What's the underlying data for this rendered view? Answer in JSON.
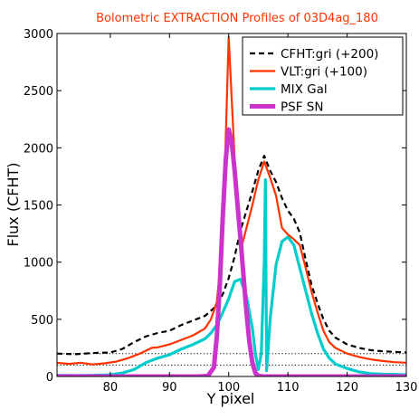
{
  "chart_data": {
    "type": "line",
    "title": "Bolometric EXTRACTION Profiles of 03D4ag_180",
    "title_color": "#ff3300",
    "xlabel": "Y pixel",
    "ylabel": "Flux (CFHT)",
    "xlim": [
      71,
      130
    ],
    "ylim": [
      0,
      3000
    ],
    "xticks": [
      80,
      90,
      100,
      110,
      120,
      130
    ],
    "yticks": [
      0,
      500,
      1000,
      1500,
      2000,
      2500,
      3000
    ],
    "xtick_labels": [
      "80",
      "90",
      "100",
      "110",
      "120",
      "130"
    ],
    "ytick_labels": [
      "0",
      "500",
      "1000",
      "1500",
      "2000",
      "2500",
      "3000"
    ],
    "grid": false,
    "legend_position": "top-right",
    "baselines": [
      {
        "y": 200,
        "color": "#000000",
        "style": "dotted"
      },
      {
        "y": 100,
        "color": "#000000",
        "style": "dotted"
      }
    ],
    "series": [
      {
        "name": "CFHT:gri (+200)",
        "color": "#000000",
        "style": "dashed",
        "x": [
          71,
          74,
          77,
          80,
          82,
          84,
          86,
          88,
          90,
          92,
          94,
          96,
          98,
          99,
          100,
          101,
          102,
          103,
          104,
          105,
          106,
          107,
          108,
          109,
          110,
          111,
          112,
          113,
          114,
          115,
          116,
          117,
          118,
          120,
          122,
          124,
          126,
          128,
          130
        ],
        "values": [
          200,
          195,
          205,
          210,
          240,
          300,
          350,
          380,
          400,
          450,
          490,
          530,
          620,
          720,
          860,
          1050,
          1280,
          1450,
          1620,
          1800,
          1930,
          1800,
          1700,
          1560,
          1450,
          1380,
          1260,
          1020,
          800,
          640,
          500,
          400,
          340,
          280,
          250,
          230,
          220,
          215,
          210
        ]
      },
      {
        "name": "VLT:gri (+100)",
        "color": "#ff3300",
        "style": "solid",
        "x": [
          71,
          73,
          75,
          77,
          79,
          81,
          83,
          85,
          87,
          88,
          90,
          92,
          94,
          96,
          97,
          98,
          99,
          100,
          101,
          102,
          103,
          104,
          105,
          106,
          107,
          108,
          109,
          110,
          111,
          112,
          113,
          114,
          115,
          116,
          117,
          118,
          120,
          122,
          124,
          126,
          128,
          130
        ],
        "values": [
          120,
          110,
          120,
          105,
          115,
          130,
          160,
          200,
          250,
          255,
          280,
          320,
          360,
          420,
          500,
          650,
          1200,
          2970,
          1900,
          1100,
          1300,
          1500,
          1720,
          1880,
          1740,
          1580,
          1300,
          1240,
          1200,
          1150,
          950,
          740,
          560,
          400,
          300,
          250,
          200,
          170,
          150,
          135,
          125,
          120
        ]
      },
      {
        "name": "MIX Gal",
        "color": "#00cccc",
        "style": "solid",
        "x": [
          71,
          74,
          77,
          80,
          82,
          84,
          86,
          88,
          90,
          92,
          94,
          96,
          97,
          98,
          99,
          100,
          101,
          102,
          103,
          104,
          104.5,
          105,
          105.5,
          106,
          106.2,
          106.4,
          107,
          108,
          109,
          110,
          111,
          112,
          113,
          114,
          115,
          116,
          117,
          118,
          120,
          122,
          124,
          126,
          128,
          130
        ],
        "values": [
          10,
          8,
          10,
          15,
          30,
          60,
          120,
          160,
          190,
          240,
          280,
          330,
          380,
          450,
          560,
          680,
          830,
          850,
          700,
          420,
          200,
          60,
          200,
          1000,
          1720,
          50,
          500,
          980,
          1180,
          1220,
          1150,
          950,
          750,
          550,
          380,
          240,
          160,
          110,
          70,
          40,
          25,
          20,
          18,
          15
        ]
      },
      {
        "name": "PSF SN",
        "color": "#cc33cc",
        "style": "solid",
        "x": [
          71,
          80,
          90,
          95,
          96.5,
          97.5,
          98,
          98.5,
          99,
          99.5,
          100,
          100.5,
          101,
          101.5,
          102,
          102.5,
          103,
          103.5,
          104,
          104.5,
          105,
          106,
          110,
          120,
          130
        ],
        "values": [
          0,
          0,
          0,
          0,
          5,
          80,
          350,
          800,
          1400,
          1900,
          2160,
          2050,
          1800,
          1500,
          1200,
          880,
          560,
          300,
          120,
          30,
          5,
          0,
          0,
          0,
          0
        ]
      }
    ],
    "legend": [
      {
        "label": "CFHT:gri (+200)",
        "color": "#000000",
        "style": "dashed"
      },
      {
        "label": "VLT:gri (+100)",
        "color": "#ff3300",
        "style": "solid"
      },
      {
        "label": "MIX Gal",
        "color": "#00cccc",
        "style": "solid"
      },
      {
        "label": "PSF SN",
        "color": "#cc33cc",
        "style": "solid"
      }
    ]
  }
}
